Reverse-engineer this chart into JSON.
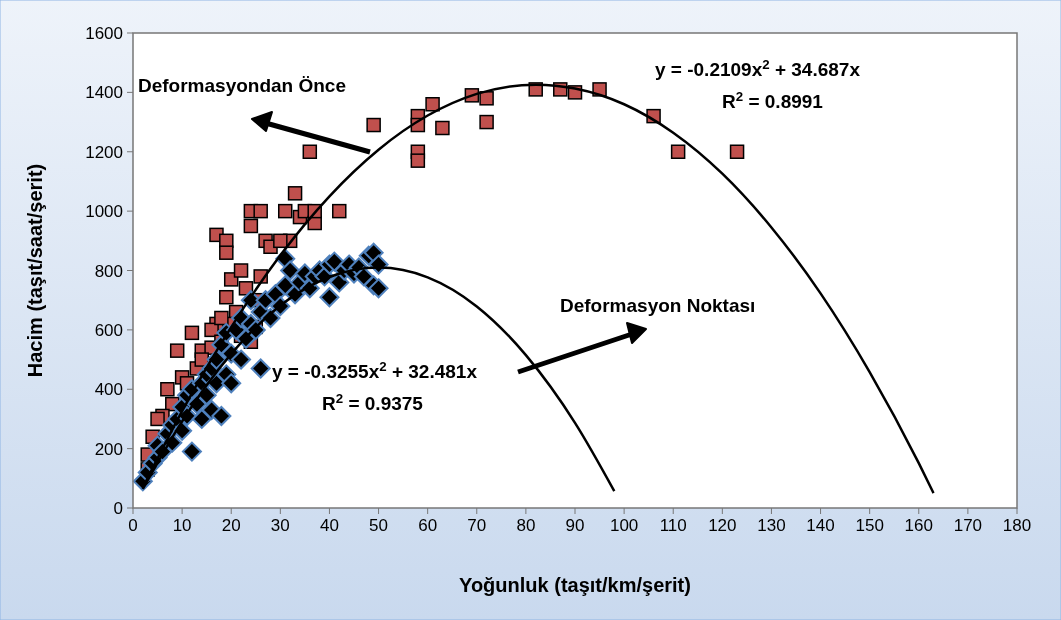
{
  "chart_data": {
    "type": "scatter",
    "xlabel": "Yoğunluk (taşıt/km/şerit)",
    "ylabel": "Hacim (taşıt/saat/şerit)",
    "xlim": [
      0,
      180
    ],
    "xticks": [
      0,
      10,
      20,
      30,
      40,
      50,
      60,
      70,
      80,
      90,
      100,
      110,
      120,
      130,
      140,
      150,
      160,
      170,
      180
    ],
    "ylim": [
      0,
      1600
    ],
    "yticks": [
      0,
      200,
      400,
      600,
      800,
      1000,
      1200,
      1400,
      1600
    ],
    "grid": false,
    "annotations": [
      "Deformasyondan Önce",
      "Deformasyon Noktası",
      "y = -0.2109x$^{2}$ + 34.687x",
      "R$^{2}$ = 0.8991",
      "y = -0.3255x$^{2}$ + 32.481x",
      "R$^{2}$ = 0.9375"
    ],
    "series": [
      {
        "marker": "square",
        "color": "#c0504d",
        "x": [
          36,
          49,
          58,
          58,
          58,
          58,
          61,
          63,
          69,
          72,
          72,
          82,
          87,
          90,
          95,
          106,
          111,
          123,
          17,
          19,
          19,
          24,
          24,
          26,
          27,
          28,
          31,
          32,
          33,
          34,
          35,
          37,
          37,
          42,
          30,
          20,
          22,
          26,
          25,
          19,
          21,
          23,
          17,
          16,
          18,
          12,
          9,
          14,
          13,
          10,
          7,
          8,
          6,
          5,
          4,
          3,
          3,
          11,
          16,
          20,
          24,
          22,
          14,
          18,
          25
        ],
        "values": [
          1200,
          1290,
          1320,
          1290,
          1200,
          1170,
          1360,
          1280,
          1390,
          1300,
          1380,
          1410,
          1410,
          1400,
          1410,
          1320,
          1200,
          1200,
          920,
          900,
          860,
          1000,
          950,
          1000,
          900,
          880,
          1000,
          900,
          1060,
          980,
          1000,
          960,
          1000,
          1000,
          900,
          770,
          800,
          780,
          700,
          710,
          660,
          740,
          620,
          600,
          560,
          590,
          530,
          530,
          470,
          440,
          400,
          350,
          310,
          300,
          240,
          180,
          130,
          420,
          540,
          620,
          560,
          580,
          500,
          640,
          610
        ]
      },
      {
        "type": "scatter",
        "marker": "diamond",
        "color": "#000000",
        "x": [
          2,
          3,
          4,
          5,
          5,
          6,
          7,
          8,
          8,
          9,
          10,
          10,
          11,
          11,
          12,
          12,
          13,
          14,
          14,
          15,
          15,
          16,
          16,
          17,
          17,
          18,
          18,
          19,
          19,
          20,
          20,
          21,
          22,
          22,
          23,
          24,
          24,
          25,
          26,
          26,
          27,
          28,
          29,
          30,
          31,
          31,
          32,
          33,
          34,
          35,
          36,
          37,
          38,
          39,
          40,
          40,
          41,
          42,
          43,
          44,
          45,
          46,
          47,
          48,
          49,
          49,
          50,
          50
        ],
        "values": [
          90,
          120,
          150,
          170,
          210,
          190,
          250,
          220,
          280,
          300,
          260,
          340,
          310,
          380,
          190,
          400,
          350,
          420,
          300,
          380,
          450,
          330,
          470,
          420,
          500,
          310,
          550,
          450,
          590,
          420,
          520,
          600,
          500,
          640,
          570,
          700,
          620,
          600,
          470,
          660,
          700,
          640,
          720,
          680,
          840,
          750,
          800,
          720,
          760,
          790,
          740,
          780,
          800,
          780,
          710,
          820,
          830,
          760,
          800,
          820,
          790,
          810,
          780,
          850,
          860,
          750,
          740,
          820
        ]
      },
      {
        "type": "line",
        "color": "#000000",
        "x": [
          2,
          10,
          20,
          30,
          40,
          50,
          60,
          70,
          82,
          90,
          100,
          110,
          120,
          130,
          140,
          150,
          160,
          163
        ],
        "values": [
          68,
          326,
          609,
          851,
          1050,
          1207,
          1322,
          1395,
          1426,
          1413,
          1360,
          1264,
          1126,
          945,
          723,
          458,
          151,
          50
        ]
      },
      {
        "type": "line",
        "color": "#000000",
        "x": [
          2,
          10,
          20,
          30,
          40,
          50,
          60,
          70,
          80,
          90,
          98
        ],
        "values": [
          64,
          292,
          519,
          682,
          778,
          810,
          777,
          679,
          515,
          287,
          57
        ]
      }
    ]
  }
}
